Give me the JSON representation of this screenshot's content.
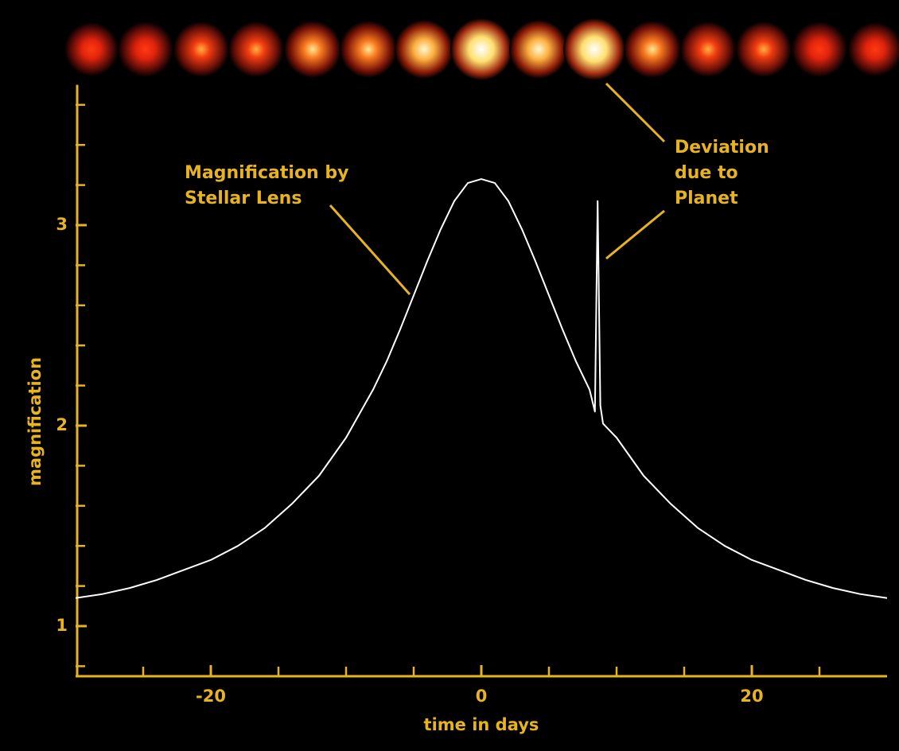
{
  "chart_data": {
    "type": "line",
    "xlabel": "time in days",
    "ylabel": "magnification",
    "xlim": [
      -30,
      30
    ],
    "ylim": [
      0.75,
      3.7
    ],
    "xticks": [
      -20,
      0,
      20
    ],
    "xminorticks": [
      -25,
      -15,
      -10,
      -5,
      5,
      10,
      15,
      25
    ],
    "yticks": [
      1,
      2,
      3
    ],
    "yminorticks": [
      0.8,
      1.2,
      1.4,
      1.6,
      1.8,
      2.2,
      2.4,
      2.6,
      2.8,
      3.2,
      3.4,
      3.6
    ],
    "axis_color": "#e8b320",
    "x": [
      -30,
      -28,
      -26,
      -24,
      -22,
      -20,
      -18,
      -16,
      -14,
      -12,
      -10,
      -8,
      -7,
      -6,
      -5,
      -4,
      -3,
      -2,
      -1,
      0,
      1,
      2,
      3,
      4,
      5,
      6,
      7,
      8,
      8.4,
      8.6,
      8.8,
      9,
      10,
      12,
      14,
      16,
      18,
      20,
      22,
      24,
      26,
      28,
      30
    ],
    "series": [
      {
        "name": "magnification",
        "color": "#ffffff",
        "values": [
          1.14,
          1.16,
          1.19,
          1.23,
          1.28,
          1.33,
          1.4,
          1.49,
          1.61,
          1.75,
          1.94,
          2.18,
          2.32,
          2.48,
          2.65,
          2.82,
          2.98,
          3.12,
          3.21,
          3.23,
          3.21,
          3.12,
          2.98,
          2.82,
          2.65,
          2.48,
          2.32,
          2.18,
          2.07,
          3.12,
          2.1,
          2.01,
          1.94,
          1.75,
          1.61,
          1.49,
          1.4,
          1.33,
          1.28,
          1.23,
          1.19,
          1.16,
          1.14
        ]
      }
    ],
    "annotations": [
      {
        "lines": [
          "Magnification by",
          "Stellar Lens"
        ]
      },
      {
        "lines": [
          "Deviation",
          "due to",
          "Planet"
        ]
      }
    ]
  }
}
